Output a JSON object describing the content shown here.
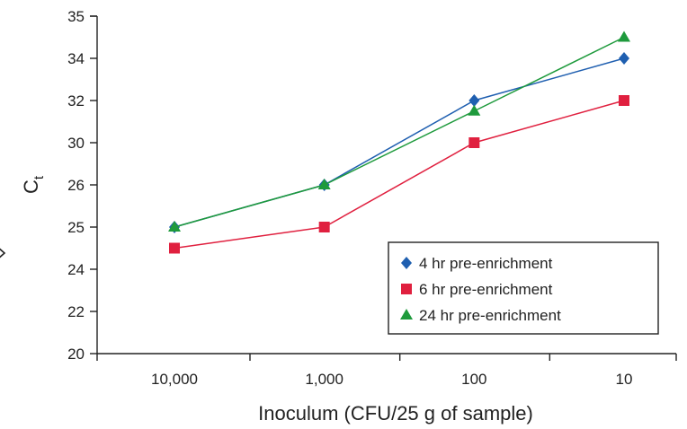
{
  "chart_data": {
    "type": "line",
    "categories": [
      "10,000",
      "1,000",
      "100",
      "10"
    ],
    "xlabel": "Inoculum (CFU/25 g of sample)",
    "ylabel": "C",
    "ylabel_subscript": "t",
    "y_ticks": [
      "20",
      "22",
      "24",
      "25",
      "26",
      "30",
      "32",
      "34",
      "35"
    ],
    "grid": false,
    "legend_position": "bottom-right",
    "series": [
      {
        "name": "4 hr pre-enrichment",
        "marker": "diamond",
        "color": "#1f5fb0",
        "values": [
          25,
          26,
          32,
          34
        ]
      },
      {
        "name": "6 hr pre-enrichment",
        "marker": "square",
        "color": "#e0203f",
        "values": [
          24.5,
          25,
          30,
          32
        ]
      },
      {
        "name": "24 hr pre-enrichment",
        "marker": "triangle",
        "color": "#1e9a3c",
        "values": [
          25,
          26,
          31.5,
          34.5
        ]
      }
    ]
  },
  "colors": {
    "axis": "#222222",
    "legend_border": "#222222",
    "edge_glyph": "#222222"
  },
  "icons": {
    "edge_glyph": "chevron-right-icon"
  }
}
